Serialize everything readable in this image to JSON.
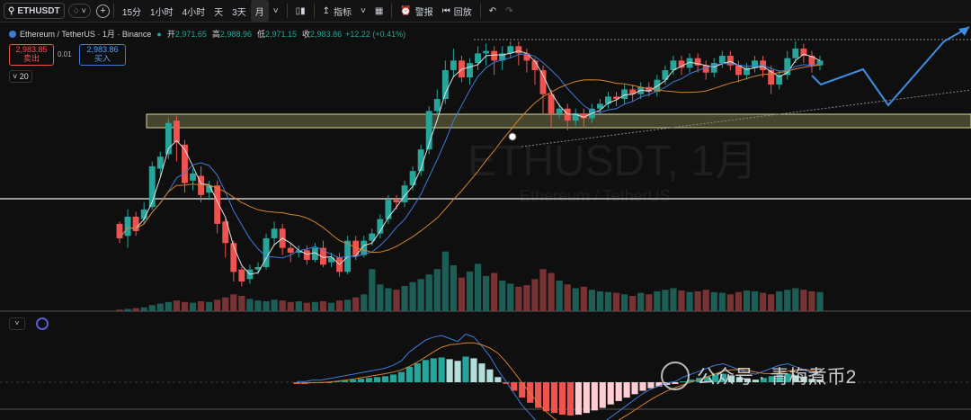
{
  "toolbar": {
    "symbol": "ETHUSDT",
    "intervals": [
      "15分",
      "1小时",
      "4小时",
      "天",
      "3天",
      "月"
    ],
    "active_interval": "月",
    "indicators_label": "指标",
    "alerts_label": "警报",
    "replay_label": "回放"
  },
  "legend": {
    "name": "Ethereum / TetherUS · 1月 · Binance",
    "open_label": "开",
    "open": "2,971.65",
    "high_label": "高",
    "high": "2,988.96",
    "low_label": "低",
    "low": "2,971.15",
    "close_label": "收",
    "close": "2,983.86",
    "change": "+12.22 (+0.41%)"
  },
  "trade": {
    "sell_price": "2,983.85",
    "sell_label": "卖出",
    "spread": "0.01",
    "buy_price": "2,983.86",
    "buy_label": "买入"
  },
  "ma_chip": "20",
  "watermark_symbol": "ETHUSDT, 1月",
  "watermark_name": "Ethereum / TetherUS",
  "wechat": "公众号 · 青梅煮币2",
  "colors": {
    "up": "#26a69a",
    "down": "#ef5350",
    "bg": "#0f0f0f",
    "ma_fast": "#e0e0e0",
    "ma_mid": "#3d7bd9",
    "ma_slow": "#d2822e"
  },
  "chart_data": {
    "type": "candlestick",
    "candles": [
      [
        0.24,
        0.18,
        0.16,
        0.25
      ],
      [
        0.19,
        0.27,
        0.14,
        0.3
      ],
      [
        0.27,
        0.21,
        0.19,
        0.29
      ],
      [
        0.26,
        0.3,
        0.24,
        0.33
      ],
      [
        0.31,
        0.48,
        0.3,
        0.5
      ],
      [
        0.47,
        0.52,
        0.44,
        0.54
      ],
      [
        0.53,
        0.66,
        0.51,
        0.68
      ],
      [
        0.67,
        0.58,
        0.5,
        0.69
      ],
      [
        0.57,
        0.41,
        0.37,
        0.59
      ],
      [
        0.42,
        0.45,
        0.38,
        0.47
      ],
      [
        0.44,
        0.36,
        0.33,
        0.48
      ],
      [
        0.37,
        0.4,
        0.34,
        0.42
      ],
      [
        0.4,
        0.24,
        0.2,
        0.42
      ],
      [
        0.25,
        0.16,
        0.1,
        0.26
      ],
      [
        0.16,
        0.04,
        0.0,
        0.17
      ],
      [
        0.05,
        0.0,
        -0.02,
        0.06
      ],
      [
        0.01,
        0.05,
        -0.01,
        0.07
      ],
      [
        0.05,
        0.06,
        0.03,
        0.08
      ],
      [
        0.06,
        0.18,
        0.05,
        0.2
      ],
      [
        0.18,
        0.22,
        0.15,
        0.25
      ],
      [
        0.22,
        0.14,
        0.11,
        0.24
      ],
      [
        0.14,
        0.12,
        0.08,
        0.16
      ],
      [
        0.12,
        0.13,
        0.1,
        0.15
      ],
      [
        0.13,
        0.09,
        0.07,
        0.15
      ],
      [
        0.09,
        0.14,
        0.08,
        0.16
      ],
      [
        0.14,
        0.07,
        0.06,
        0.17
      ],
      [
        0.08,
        0.1,
        0.06,
        0.12
      ],
      [
        0.1,
        0.04,
        0.02,
        0.12
      ],
      [
        0.04,
        0.17,
        0.03,
        0.19
      ],
      [
        0.17,
        0.11,
        0.09,
        0.19
      ],
      [
        0.11,
        0.17,
        0.1,
        0.19
      ],
      [
        0.17,
        0.2,
        0.15,
        0.22
      ],
      [
        0.2,
        0.26,
        0.18,
        0.28
      ],
      [
        0.26,
        0.34,
        0.24,
        0.36
      ],
      [
        0.34,
        0.33,
        0.3,
        0.36
      ],
      [
        0.33,
        0.4,
        0.31,
        0.42
      ],
      [
        0.4,
        0.46,
        0.38,
        0.48
      ],
      [
        0.46,
        0.55,
        0.44,
        0.57
      ],
      [
        0.55,
        0.71,
        0.53,
        0.73
      ],
      [
        0.71,
        0.76,
        0.69,
        0.8
      ],
      [
        0.76,
        0.88,
        0.74,
        0.92
      ],
      [
        0.88,
        0.92,
        0.85,
        0.97
      ],
      [
        0.92,
        0.85,
        0.83,
        0.94
      ],
      [
        0.85,
        0.91,
        0.82,
        0.93
      ],
      [
        0.91,
        0.95,
        0.88,
        0.98
      ],
      [
        0.95,
        0.96,
        0.9,
        0.99
      ],
      [
        0.96,
        0.92,
        0.86,
        0.98
      ],
      [
        0.92,
        0.95,
        0.88,
        0.98
      ],
      [
        0.95,
        0.98,
        0.93,
        1.0
      ],
      [
        0.98,
        0.95,
        0.9,
        1.0
      ],
      [
        0.95,
        0.92,
        0.87,
        0.97
      ],
      [
        0.92,
        0.88,
        0.82,
        0.93
      ],
      [
        0.88,
        0.78,
        0.7,
        0.9
      ],
      [
        0.78,
        0.7,
        0.64,
        0.8
      ],
      [
        0.7,
        0.72,
        0.68,
        0.74
      ],
      [
        0.72,
        0.67,
        0.63,
        0.74
      ],
      [
        0.67,
        0.7,
        0.65,
        0.72
      ],
      [
        0.7,
        0.68,
        0.64,
        0.72
      ],
      [
        0.68,
        0.72,
        0.66,
        0.74
      ],
      [
        0.72,
        0.74,
        0.7,
        0.76
      ],
      [
        0.74,
        0.77,
        0.72,
        0.79
      ],
      [
        0.77,
        0.76,
        0.73,
        0.79
      ],
      [
        0.76,
        0.8,
        0.74,
        0.82
      ],
      [
        0.8,
        0.78,
        0.75,
        0.82
      ],
      [
        0.78,
        0.81,
        0.76,
        0.83
      ],
      [
        0.81,
        0.79,
        0.77,
        0.83
      ],
      [
        0.79,
        0.84,
        0.77,
        0.86
      ],
      [
        0.84,
        0.88,
        0.82,
        0.9
      ],
      [
        0.88,
        0.92,
        0.86,
        0.94
      ],
      [
        0.92,
        0.89,
        0.86,
        0.94
      ],
      [
        0.89,
        0.93,
        0.87,
        0.95
      ],
      [
        0.93,
        0.9,
        0.87,
        0.95
      ],
      [
        0.9,
        0.87,
        0.84,
        0.92
      ],
      [
        0.87,
        0.91,
        0.85,
        0.93
      ],
      [
        0.91,
        0.94,
        0.89,
        0.96
      ],
      [
        0.94,
        0.9,
        0.88,
        0.96
      ],
      [
        0.9,
        0.86,
        0.83,
        0.92
      ],
      [
        0.86,
        0.89,
        0.84,
        0.91
      ],
      [
        0.89,
        0.92,
        0.87,
        0.94
      ],
      [
        0.92,
        0.88,
        0.85,
        0.94
      ],
      [
        0.88,
        0.82,
        0.78,
        0.9
      ],
      [
        0.82,
        0.86,
        0.8,
        0.88
      ],
      [
        0.86,
        0.93,
        0.84,
        0.96
      ],
      [
        0.93,
        0.97,
        0.91,
        1.0
      ],
      [
        0.97,
        0.94,
        0.91,
        0.99
      ],
      [
        0.94,
        0.9,
        0.87,
        0.96
      ],
      [
        0.9,
        0.92,
        0.88,
        0.94
      ]
    ],
    "volumes": [
      0.02,
      0.03,
      0.04,
      0.05,
      0.08,
      0.1,
      0.12,
      0.14,
      0.12,
      0.11,
      0.13,
      0.12,
      0.15,
      0.18,
      0.22,
      0.2,
      0.16,
      0.14,
      0.13,
      0.15,
      0.14,
      0.12,
      0.13,
      0.11,
      0.12,
      0.13,
      0.11,
      0.14,
      0.15,
      0.18,
      0.22,
      0.55,
      0.35,
      0.3,
      0.28,
      0.33,
      0.38,
      0.42,
      0.48,
      0.55,
      0.78,
      0.6,
      0.44,
      0.52,
      0.62,
      0.46,
      0.5,
      0.4,
      0.36,
      0.32,
      0.34,
      0.42,
      0.55,
      0.5,
      0.4,
      0.35,
      0.3,
      0.32,
      0.28,
      0.26,
      0.25,
      0.24,
      0.22,
      0.2,
      0.24,
      0.22,
      0.26,
      0.28,
      0.3,
      0.27,
      0.25,
      0.26,
      0.28,
      0.25,
      0.24,
      0.22,
      0.25,
      0.27,
      0.26,
      0.24,
      0.22,
      0.26,
      0.28,
      0.3,
      0.28,
      0.26,
      0.25
    ],
    "macd_hist": [
      -0.02,
      -0.02,
      -0.01,
      -0.01,
      0.0,
      0.01,
      0.02,
      0.03,
      0.04,
      0.05,
      0.06,
      0.07,
      0.09,
      0.12,
      0.18,
      0.22,
      0.26,
      0.28,
      0.29,
      0.27,
      0.25,
      0.3,
      0.28,
      0.22,
      0.15,
      0.06,
      -0.02,
      -0.1,
      -0.18,
      -0.24,
      -0.3,
      -0.34,
      -0.36,
      -0.38,
      -0.39,
      -0.38,
      -0.36,
      -0.33,
      -0.3,
      -0.26,
      -0.22,
      -0.18,
      -0.14,
      -0.1,
      -0.07,
      -0.05,
      -0.03,
      -0.02,
      0.01,
      0.03,
      0.05,
      0.07,
      0.09,
      0.1,
      0.08,
      0.06,
      0.04,
      0.03,
      0.05,
      0.07,
      0.09,
      0.1,
      0.08,
      0.06,
      0.04,
      0.03
    ]
  }
}
